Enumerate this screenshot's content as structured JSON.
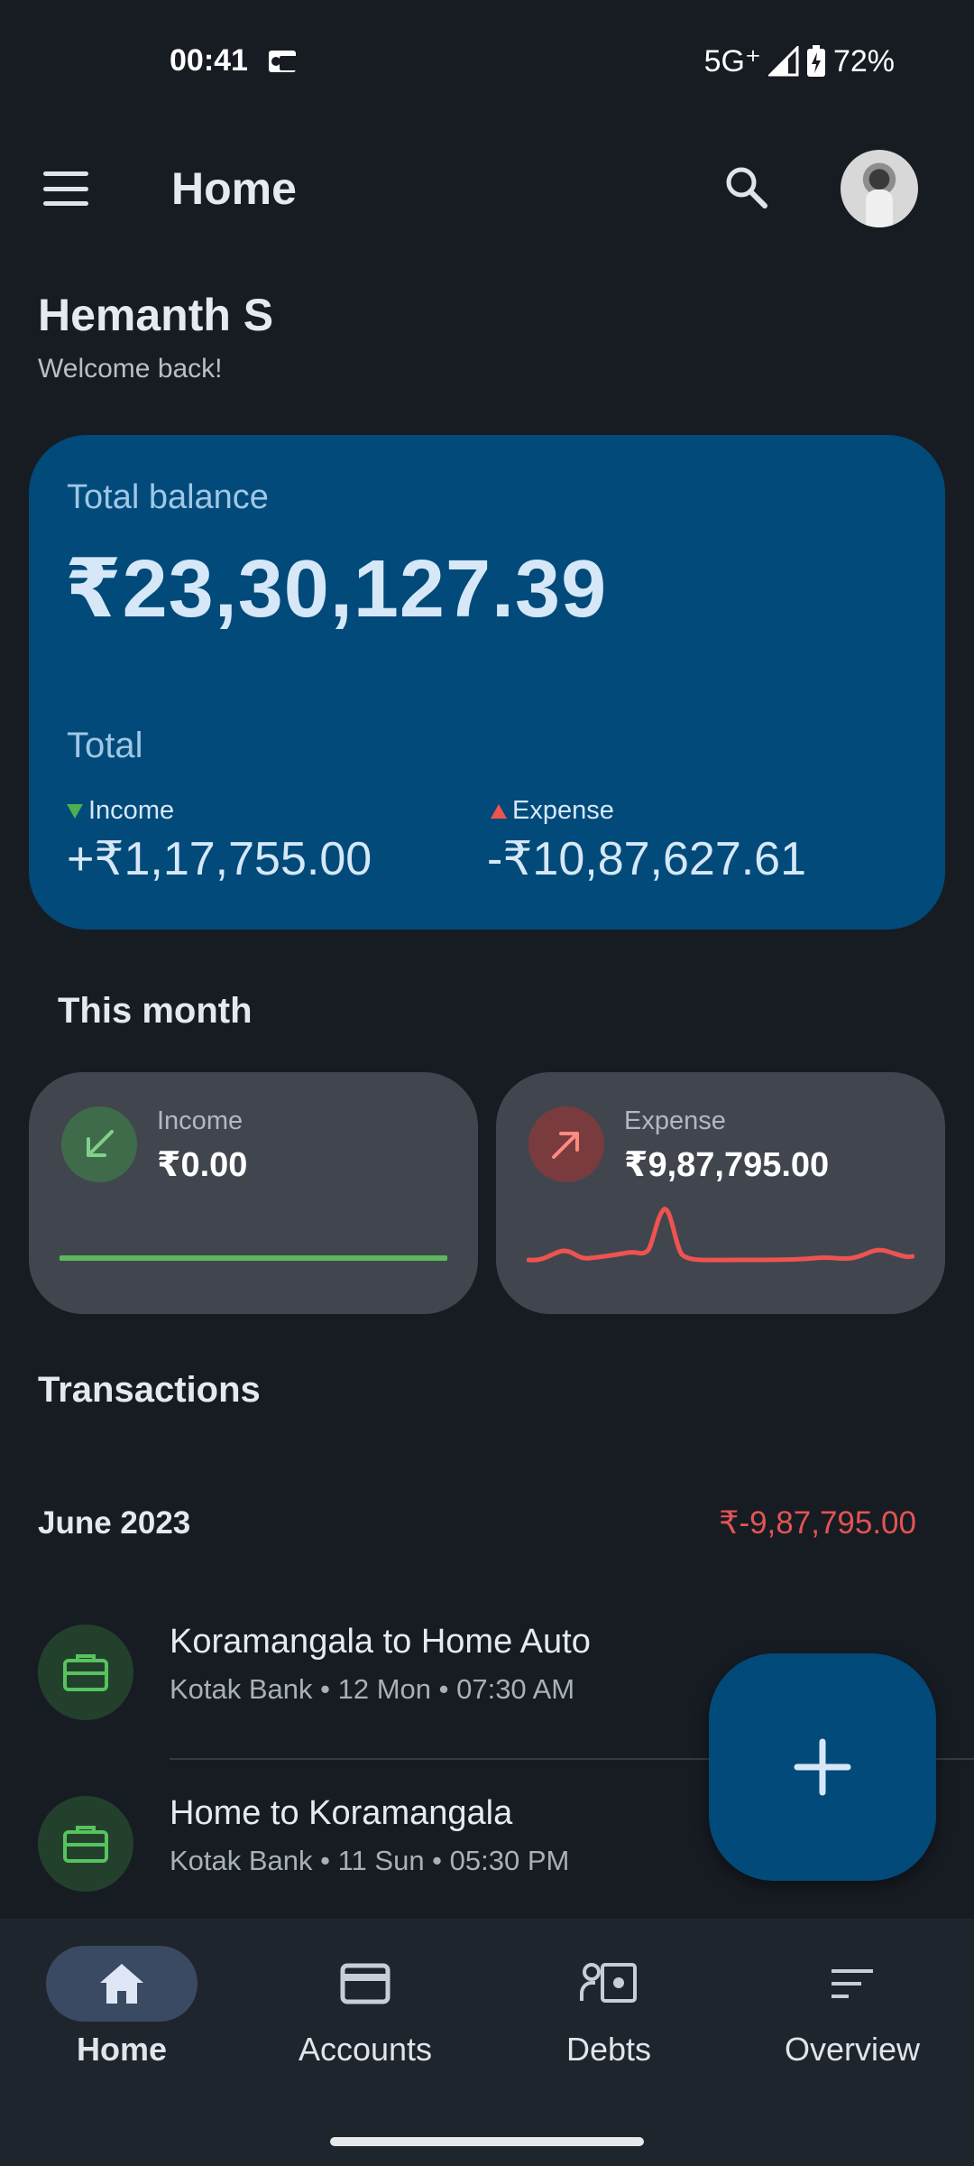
{
  "status_bar": {
    "time": "00:41",
    "network": "5G⁺",
    "battery": "72%"
  },
  "app_bar": {
    "title": "Home"
  },
  "user": {
    "name": "Hemanth S",
    "greeting": "Welcome back!"
  },
  "balance_card": {
    "label": "Total balance",
    "value": "₹23,30,127.39",
    "period_label": "Total",
    "income_label": "Income",
    "income_value": "+₹1,17,755.00",
    "expense_label": "Expense",
    "expense_value": "-₹10,87,627.61"
  },
  "this_month": {
    "title": "This month",
    "income": {
      "label": "Income",
      "value": "₹0.00"
    },
    "expense": {
      "label": "Expense",
      "value": "₹9,87,795.00"
    }
  },
  "transactions": {
    "title": "Transactions",
    "group_month": "June 2023",
    "group_total": "₹-9,87,795.00",
    "items": [
      {
        "name": "Koramangala to Home Auto",
        "meta": "Kotak Bank  • 12 Mon • 07:30 AM"
      },
      {
        "name": "Home to Koramangala",
        "meta": "Kotak Bank  • 11 Sun • 05:30 PM"
      }
    ]
  },
  "bottom_nav": {
    "items": [
      {
        "label": "Home",
        "icon": "home-icon",
        "active": true
      },
      {
        "label": "Accounts",
        "icon": "card-icon",
        "active": false
      },
      {
        "label": "Debts",
        "icon": "debts-icon",
        "active": false
      },
      {
        "label": "Overview",
        "icon": "sort-icon",
        "active": false
      }
    ]
  },
  "colors": {
    "background": "#171c23",
    "primary_card": "#014a7a",
    "income_green": "#4caf50",
    "expense_red": "#e35454"
  }
}
